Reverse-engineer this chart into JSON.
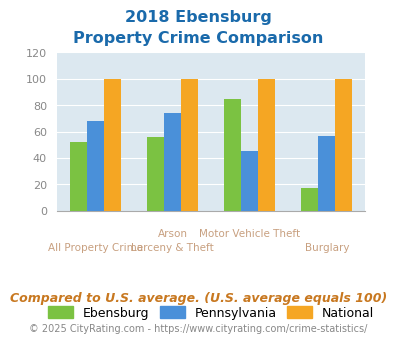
{
  "title_line1": "2018 Ebensburg",
  "title_line2": "Property Crime Comparison",
  "x_labels_top": [
    "",
    "Arson",
    "Motor Vehicle Theft",
    ""
  ],
  "x_labels_bottom": [
    "All Property Crime",
    "Larceny & Theft",
    "",
    "Burglary"
  ],
  "ebensburg": [
    52,
    56,
    85,
    17
  ],
  "pennsylvania": [
    68,
    74,
    45,
    57
  ],
  "national": [
    100,
    100,
    100,
    100
  ],
  "bar_colors": {
    "ebensburg": "#7bc242",
    "pennsylvania": "#4a90d9",
    "national": "#f5a623"
  },
  "ylim": [
    0,
    120
  ],
  "yticks": [
    0,
    20,
    40,
    60,
    80,
    100,
    120
  ],
  "plot_bg": "#dce8f0",
  "title_color": "#1a6aab",
  "legend_labels": [
    "Ebensburg",
    "Pennsylvania",
    "National"
  ],
  "footer_text": "Compared to U.S. average. (U.S. average equals 100)",
  "copyright_text": "© 2025 CityRating.com - https://www.cityrating.com/crime-statistics/",
  "title_fontsize": 11.5,
  "footer_fontsize": 9,
  "copyright_fontsize": 7
}
